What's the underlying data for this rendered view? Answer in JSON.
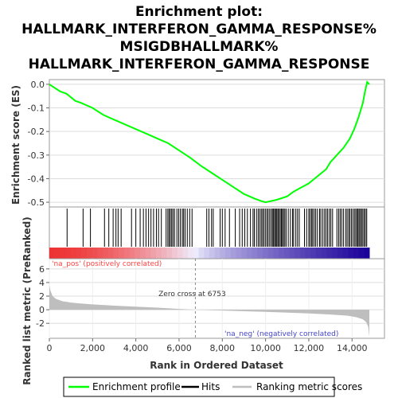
{
  "title_lines": [
    "Enrichment plot:",
    "HALLMARK_INTERFERON_GAMMA_RESPONSE%",
    "MSIGDBHALLMARK%",
    "HALLMARK_INTERFERON_GAMMA_RESPONSE"
  ],
  "legend": {
    "profile": "Enrichment profile",
    "hits": "Hits",
    "metric": "Ranking metric scores"
  },
  "colors": {
    "profile": "#00ff00",
    "hits": "#000000",
    "metric_fill": "#bebebe",
    "pos_label": "#ff4444",
    "neg_label": "#4444cc",
    "heat_pos": "#ee3333",
    "heat_neg": "#1a0099"
  },
  "chart_data": [
    {
      "type": "line",
      "name": "enrichment-score-panel",
      "ylabel": "Enrichment score (ES)",
      "ylim": [
        -0.52,
        0.02
      ],
      "yticks": [
        0.0,
        -0.1,
        -0.2,
        -0.3,
        -0.4,
        -0.5
      ],
      "ytick_labels": [
        "0.0",
        "-0.1",
        "-0.2",
        "-0.3",
        "-0.4",
        "-0.5"
      ],
      "xlim": [
        0,
        15500
      ],
      "grid": true,
      "series": [
        {
          "x": [
            0,
            500,
            800,
            1200,
            1500,
            2000,
            2500,
            3000,
            3500,
            4000,
            4500,
            5000,
            5500,
            6000,
            6500,
            7000,
            7500,
            8000,
            8500,
            9000,
            9500,
            9800,
            10000,
            10500,
            11000,
            11300,
            11600,
            12000,
            12400,
            12800,
            13000,
            13300,
            13600,
            13900,
            14100,
            14300,
            14500,
            14600,
            14700,
            14800
          ],
          "y": [
            0.0,
            -0.03,
            -0.04,
            -0.07,
            -0.08,
            -0.1,
            -0.13,
            -0.15,
            -0.17,
            -0.19,
            -0.21,
            -0.23,
            -0.25,
            -0.28,
            -0.31,
            -0.345,
            -0.375,
            -0.405,
            -0.435,
            -0.465,
            -0.485,
            -0.495,
            -0.5,
            -0.49,
            -0.475,
            -0.455,
            -0.44,
            -0.42,
            -0.39,
            -0.36,
            -0.33,
            -0.3,
            -0.27,
            -0.23,
            -0.19,
            -0.14,
            -0.08,
            -0.03,
            0.01,
            0.0
          ]
        }
      ]
    },
    {
      "type": "scatter",
      "name": "hits-panel",
      "hits": [
        820,
        1560,
        1900,
        2550,
        2750,
        2950,
        3080,
        3180,
        3320,
        3800,
        4000,
        4200,
        4350,
        4470,
        4590,
        4700,
        4820,
        4950,
        5050,
        5180,
        5400,
        5480,
        5540,
        5600,
        5660,
        5720,
        5790,
        5900,
        5980,
        6060,
        6150,
        6210,
        6280,
        6380,
        6490,
        6600,
        7280,
        7380,
        7500,
        7580,
        7900,
        8000,
        8130,
        8330,
        8600,
        8800,
        8920,
        9040,
        9160,
        9300,
        9420,
        9480,
        9580,
        9660,
        9730,
        9800,
        9860,
        9920,
        9990,
        10060,
        10120,
        10190,
        10260,
        10320,
        10370,
        10420,
        10470,
        10520,
        10570,
        10620,
        10680,
        10730,
        10780,
        10830,
        10890,
        10950,
        11050,
        11150,
        11250,
        11300,
        11400,
        11480,
        11560,
        11800,
        11900,
        12000,
        12060,
        12130,
        12180,
        12250,
        12320,
        12400,
        12500,
        12560,
        12650,
        12730,
        12800,
        12870,
        12950,
        13020,
        13100,
        13300,
        13380,
        13450,
        13520,
        13600,
        13700,
        13770,
        13840,
        13900,
        13970,
        14040,
        14110,
        14170,
        14230,
        14280,
        14330,
        14390,
        14440,
        14500,
        14560,
        14620,
        14680
      ]
    },
    {
      "type": "area",
      "name": "ranked-metric-panel",
      "ylabel": "Ranked list metric (PreRanked)",
      "xlabel": "Rank in Ordered Dataset",
      "ylim": [
        -4.2,
        7.5
      ],
      "yticks": [
        6,
        4,
        2,
        0,
        -2
      ],
      "ytick_labels": [
        "6",
        "4",
        "2",
        "0",
        "-2"
      ],
      "xlim": [
        0,
        15500
      ],
      "xticks": [
        0,
        2000,
        4000,
        6000,
        8000,
        10000,
        12000,
        14000
      ],
      "xtick_labels": [
        "0",
        "2,000",
        "4,000",
        "6,000",
        "8,000",
        "10,000",
        "12,000",
        "14,000"
      ],
      "zero_cross": 6753,
      "zero_cross_label": "Zero cross at 6753",
      "pos_label": "'na_pos' (positively correlated)",
      "neg_label": "'na_neg' (negatively correlated)",
      "grid": true,
      "series": [
        {
          "x": [
            0,
            50,
            150,
            300,
            600,
            1000,
            1500,
            2000,
            3000,
            4000,
            5000,
            6000,
            6753,
            8000,
            9000,
            10000,
            11000,
            12000,
            13000,
            13800,
            14200,
            14500,
            14650,
            14750,
            14800
          ],
          "y": [
            3.6,
            2.8,
            2.0,
            1.6,
            1.25,
            1.05,
            0.9,
            0.78,
            0.6,
            0.45,
            0.3,
            0.12,
            0.0,
            -0.12,
            -0.22,
            -0.32,
            -0.42,
            -0.55,
            -0.7,
            -0.88,
            -1.1,
            -1.4,
            -1.8,
            -2.5,
            -4.0
          ]
        }
      ]
    }
  ]
}
